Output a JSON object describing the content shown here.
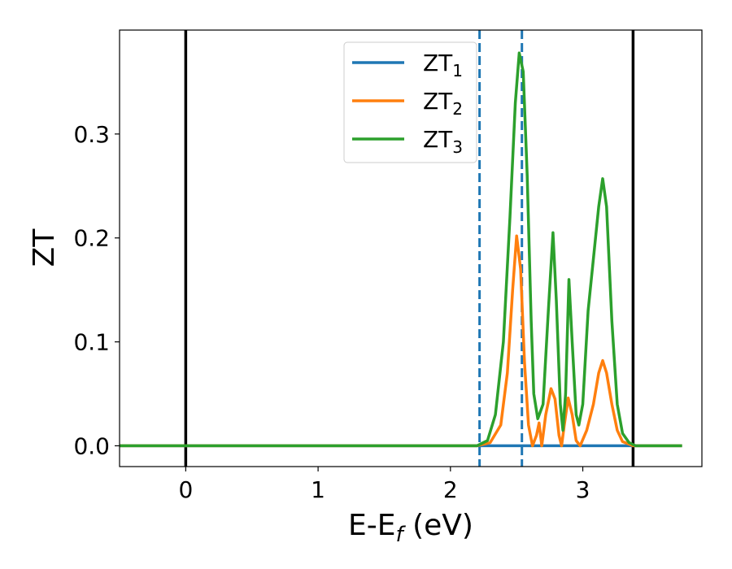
{
  "chart_data": {
    "type": "line",
    "xlabel": "E-E_f (eV)",
    "xlabel_parts": {
      "main": "E-E",
      "sub": "f",
      "tail": " (eV)"
    },
    "ylabel": "ZT",
    "xlim": [
      -0.5,
      3.9
    ],
    "ylim": [
      -0.02,
      0.4
    ],
    "x_ticks": [
      0,
      1,
      2,
      3
    ],
    "x_tick_labels": [
      "0",
      "1",
      "2",
      "3"
    ],
    "y_ticks": [
      0.0,
      0.1,
      0.2,
      0.3
    ],
    "y_tick_labels": [
      "0.0",
      "0.1",
      "0.2",
      "0.3"
    ],
    "grid": false,
    "legend_position": "top-center",
    "vlines": [
      {
        "x": 0.0,
        "style": "solid",
        "color": "#000000"
      },
      {
        "x": 3.38,
        "style": "solid",
        "color": "#000000"
      },
      {
        "x": 2.22,
        "style": "dashed",
        "color": "#1f77b4"
      },
      {
        "x": 2.54,
        "style": "dashed",
        "color": "#1f77b4"
      }
    ],
    "series": [
      {
        "name": "ZT_1",
        "label_main": "ZT",
        "label_sub": "1",
        "color": "#1f77b4",
        "points": [
          [
            -0.5,
            0
          ],
          [
            3.75,
            0
          ]
        ]
      },
      {
        "name": "ZT_2",
        "label_main": "ZT",
        "label_sub": "2",
        "color": "#ff7f0e",
        "points": [
          [
            -0.5,
            0
          ],
          [
            2.2,
            0
          ],
          [
            2.3,
            0.003
          ],
          [
            2.38,
            0.02
          ],
          [
            2.43,
            0.07
          ],
          [
            2.47,
            0.15
          ],
          [
            2.5,
            0.202
          ],
          [
            2.53,
            0.17
          ],
          [
            2.56,
            0.08
          ],
          [
            2.59,
            0.02
          ],
          [
            2.62,
            0.0
          ],
          [
            2.65,
            0.01
          ],
          [
            2.67,
            0.022
          ],
          [
            2.69,
            0.0
          ],
          [
            2.72,
            0.03
          ],
          [
            2.76,
            0.055
          ],
          [
            2.79,
            0.045
          ],
          [
            2.82,
            0.01
          ],
          [
            2.84,
            0.0
          ],
          [
            2.86,
            0.02
          ],
          [
            2.89,
            0.046
          ],
          [
            2.92,
            0.03
          ],
          [
            2.95,
            0.005
          ],
          [
            2.98,
            0.0
          ],
          [
            3.03,
            0.015
          ],
          [
            3.08,
            0.04
          ],
          [
            3.12,
            0.07
          ],
          [
            3.15,
            0.082
          ],
          [
            3.18,
            0.07
          ],
          [
            3.22,
            0.04
          ],
          [
            3.26,
            0.015
          ],
          [
            3.3,
            0.004
          ],
          [
            3.38,
            0.0
          ],
          [
            3.75,
            0
          ]
        ]
      },
      {
        "name": "ZT_3",
        "label_main": "ZT",
        "label_sub": "3",
        "color": "#2ca02c",
        "points": [
          [
            -0.5,
            0
          ],
          [
            2.2,
            0
          ],
          [
            2.28,
            0.005
          ],
          [
            2.34,
            0.03
          ],
          [
            2.4,
            0.1
          ],
          [
            2.45,
            0.22
          ],
          [
            2.49,
            0.33
          ],
          [
            2.52,
            0.378
          ],
          [
            2.55,
            0.36
          ],
          [
            2.58,
            0.26
          ],
          [
            2.61,
            0.12
          ],
          [
            2.63,
            0.05
          ],
          [
            2.66,
            0.026
          ],
          [
            2.7,
            0.04
          ],
          [
            2.74,
            0.13
          ],
          [
            2.775,
            0.205
          ],
          [
            2.8,
            0.14
          ],
          [
            2.83,
            0.04
          ],
          [
            2.85,
            0.015
          ],
          [
            2.87,
            0.05
          ],
          [
            2.895,
            0.16
          ],
          [
            2.92,
            0.1
          ],
          [
            2.95,
            0.03
          ],
          [
            2.97,
            0.02
          ],
          [
            3.0,
            0.04
          ],
          [
            3.04,
            0.13
          ],
          [
            3.08,
            0.18
          ],
          [
            3.12,
            0.23
          ],
          [
            3.15,
            0.257
          ],
          [
            3.18,
            0.23
          ],
          [
            3.22,
            0.12
          ],
          [
            3.26,
            0.04
          ],
          [
            3.3,
            0.012
          ],
          [
            3.35,
            0.003
          ],
          [
            3.4,
            0.0
          ],
          [
            3.75,
            0
          ]
        ]
      }
    ]
  }
}
